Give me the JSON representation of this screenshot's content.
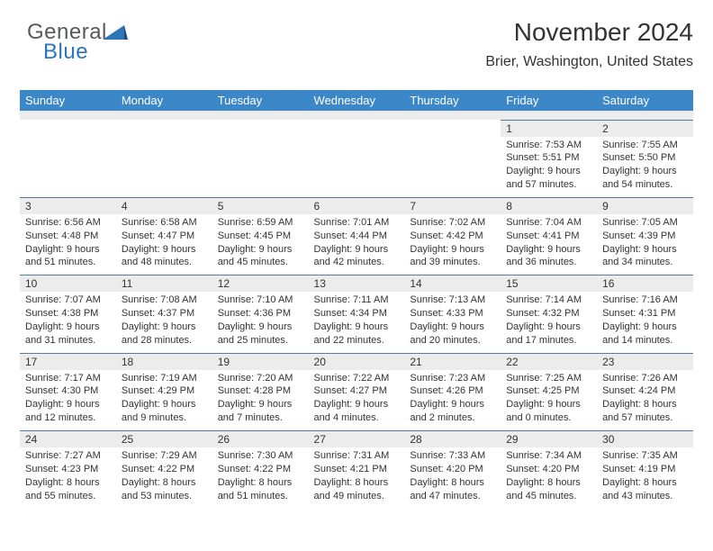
{
  "logo": {
    "word1": "General",
    "word2": "Blue",
    "color_gray": "#58595b",
    "color_blue": "#2d74b9"
  },
  "title": "November 2024",
  "location": "Brier, Washington, United States",
  "header_bg": "#3b87c8",
  "header_fg": "#ffffff",
  "daynum_bg": "#ececec",
  "rule_color": "#5a7ba0",
  "text_color": "#333333",
  "body_fontsize": 11,
  "days_of_week": [
    "Sunday",
    "Monday",
    "Tuesday",
    "Wednesday",
    "Thursday",
    "Friday",
    "Saturday"
  ],
  "weeks": [
    [
      null,
      null,
      null,
      null,
      null,
      {
        "n": "1",
        "sunrise": "Sunrise: 7:53 AM",
        "sunset": "Sunset: 5:51 PM",
        "daylight": "Daylight: 9 hours and 57 minutes."
      },
      {
        "n": "2",
        "sunrise": "Sunrise: 7:55 AM",
        "sunset": "Sunset: 5:50 PM",
        "daylight": "Daylight: 9 hours and 54 minutes."
      }
    ],
    [
      {
        "n": "3",
        "sunrise": "Sunrise: 6:56 AM",
        "sunset": "Sunset: 4:48 PM",
        "daylight": "Daylight: 9 hours and 51 minutes."
      },
      {
        "n": "4",
        "sunrise": "Sunrise: 6:58 AM",
        "sunset": "Sunset: 4:47 PM",
        "daylight": "Daylight: 9 hours and 48 minutes."
      },
      {
        "n": "5",
        "sunrise": "Sunrise: 6:59 AM",
        "sunset": "Sunset: 4:45 PM",
        "daylight": "Daylight: 9 hours and 45 minutes."
      },
      {
        "n": "6",
        "sunrise": "Sunrise: 7:01 AM",
        "sunset": "Sunset: 4:44 PM",
        "daylight": "Daylight: 9 hours and 42 minutes."
      },
      {
        "n": "7",
        "sunrise": "Sunrise: 7:02 AM",
        "sunset": "Sunset: 4:42 PM",
        "daylight": "Daylight: 9 hours and 39 minutes."
      },
      {
        "n": "8",
        "sunrise": "Sunrise: 7:04 AM",
        "sunset": "Sunset: 4:41 PM",
        "daylight": "Daylight: 9 hours and 36 minutes."
      },
      {
        "n": "9",
        "sunrise": "Sunrise: 7:05 AM",
        "sunset": "Sunset: 4:39 PM",
        "daylight": "Daylight: 9 hours and 34 minutes."
      }
    ],
    [
      {
        "n": "10",
        "sunrise": "Sunrise: 7:07 AM",
        "sunset": "Sunset: 4:38 PM",
        "daylight": "Daylight: 9 hours and 31 minutes."
      },
      {
        "n": "11",
        "sunrise": "Sunrise: 7:08 AM",
        "sunset": "Sunset: 4:37 PM",
        "daylight": "Daylight: 9 hours and 28 minutes."
      },
      {
        "n": "12",
        "sunrise": "Sunrise: 7:10 AM",
        "sunset": "Sunset: 4:36 PM",
        "daylight": "Daylight: 9 hours and 25 minutes."
      },
      {
        "n": "13",
        "sunrise": "Sunrise: 7:11 AM",
        "sunset": "Sunset: 4:34 PM",
        "daylight": "Daylight: 9 hours and 22 minutes."
      },
      {
        "n": "14",
        "sunrise": "Sunrise: 7:13 AM",
        "sunset": "Sunset: 4:33 PM",
        "daylight": "Daylight: 9 hours and 20 minutes."
      },
      {
        "n": "15",
        "sunrise": "Sunrise: 7:14 AM",
        "sunset": "Sunset: 4:32 PM",
        "daylight": "Daylight: 9 hours and 17 minutes."
      },
      {
        "n": "16",
        "sunrise": "Sunrise: 7:16 AM",
        "sunset": "Sunset: 4:31 PM",
        "daylight": "Daylight: 9 hours and 14 minutes."
      }
    ],
    [
      {
        "n": "17",
        "sunrise": "Sunrise: 7:17 AM",
        "sunset": "Sunset: 4:30 PM",
        "daylight": "Daylight: 9 hours and 12 minutes."
      },
      {
        "n": "18",
        "sunrise": "Sunrise: 7:19 AM",
        "sunset": "Sunset: 4:29 PM",
        "daylight": "Daylight: 9 hours and 9 minutes."
      },
      {
        "n": "19",
        "sunrise": "Sunrise: 7:20 AM",
        "sunset": "Sunset: 4:28 PM",
        "daylight": "Daylight: 9 hours and 7 minutes."
      },
      {
        "n": "20",
        "sunrise": "Sunrise: 7:22 AM",
        "sunset": "Sunset: 4:27 PM",
        "daylight": "Daylight: 9 hours and 4 minutes."
      },
      {
        "n": "21",
        "sunrise": "Sunrise: 7:23 AM",
        "sunset": "Sunset: 4:26 PM",
        "daylight": "Daylight: 9 hours and 2 minutes."
      },
      {
        "n": "22",
        "sunrise": "Sunrise: 7:25 AM",
        "sunset": "Sunset: 4:25 PM",
        "daylight": "Daylight: 9 hours and 0 minutes."
      },
      {
        "n": "23",
        "sunrise": "Sunrise: 7:26 AM",
        "sunset": "Sunset: 4:24 PM",
        "daylight": "Daylight: 8 hours and 57 minutes."
      }
    ],
    [
      {
        "n": "24",
        "sunrise": "Sunrise: 7:27 AM",
        "sunset": "Sunset: 4:23 PM",
        "daylight": "Daylight: 8 hours and 55 minutes."
      },
      {
        "n": "25",
        "sunrise": "Sunrise: 7:29 AM",
        "sunset": "Sunset: 4:22 PM",
        "daylight": "Daylight: 8 hours and 53 minutes."
      },
      {
        "n": "26",
        "sunrise": "Sunrise: 7:30 AM",
        "sunset": "Sunset: 4:22 PM",
        "daylight": "Daylight: 8 hours and 51 minutes."
      },
      {
        "n": "27",
        "sunrise": "Sunrise: 7:31 AM",
        "sunset": "Sunset: 4:21 PM",
        "daylight": "Daylight: 8 hours and 49 minutes."
      },
      {
        "n": "28",
        "sunrise": "Sunrise: 7:33 AM",
        "sunset": "Sunset: 4:20 PM",
        "daylight": "Daylight: 8 hours and 47 minutes."
      },
      {
        "n": "29",
        "sunrise": "Sunrise: 7:34 AM",
        "sunset": "Sunset: 4:20 PM",
        "daylight": "Daylight: 8 hours and 45 minutes."
      },
      {
        "n": "30",
        "sunrise": "Sunrise: 7:35 AM",
        "sunset": "Sunset: 4:19 PM",
        "daylight": "Daylight: 8 hours and 43 minutes."
      }
    ]
  ]
}
